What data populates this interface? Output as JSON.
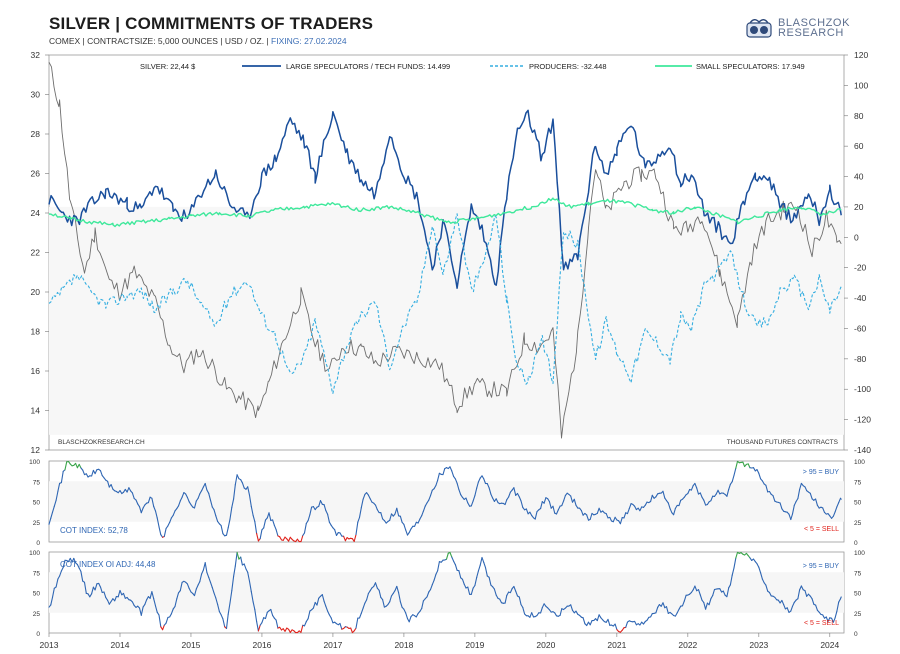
{
  "header": {
    "title": "SILVER | COMMITMENTS OF TRADERS",
    "subtitle": "COMEX | CONTRACTSIZE: 5,000 OUNCES | USD / OZ. |",
    "fixing": "FIXING: 27.02.2024"
  },
  "brand": {
    "line1": "BLASCHZOK",
    "line2": "RESEARCH",
    "logo": "chart-logo-icon"
  },
  "colors": {
    "price": "#6e6e6e",
    "large": "#1a4f9c",
    "producers": "#35aee0",
    "small": "#3ee89b",
    "cot": "#2f66b3",
    "buy": "#3aa54a",
    "sell": "#e0231c"
  },
  "chart_data": [
    {
      "id": "main",
      "type": "line",
      "title": "SILVER | COMMITMENTS OF TRADERS",
      "x_range": [
        2013.0,
        2024.2
      ],
      "x_ticks": [
        "2013",
        "2014",
        "2015",
        "2016",
        "2017",
        "2018",
        "2019",
        "2020",
        "2021",
        "2022",
        "2023",
        "2024"
      ],
      "left_axis": {
        "label": "USD / OZ.",
        "range": [
          12,
          32
        ],
        "ticks": [
          32,
          30,
          28,
          26,
          24,
          22,
          20,
          18,
          16,
          14,
          12
        ]
      },
      "right_axis": {
        "label": "THOUSAND FUTURES CONTRACTS",
        "range": [
          -140,
          120
        ],
        "ticks": [
          120,
          100,
          80,
          60,
          40,
          20,
          0,
          -20,
          -40,
          -60,
          -80,
          -100,
          -120,
          -140
        ]
      },
      "legend": [
        "SILVER: 22,44 $",
        "LARGE SPECULATORS / TECH FUNDS: 14.499",
        "PRODUCERS: -32.448",
        "SMALL SPECULATORS: 17.949"
      ],
      "source_note": "BLASCHZOKRESEARCH.CH",
      "units_note": "THOUSAND  FUTURES CONTRACTS",
      "series": [
        {
          "name": "Silver price",
          "axis": "left",
          "x": [
            2013.0,
            2013.15,
            2013.3,
            2013.5,
            2013.65,
            2013.85,
            2014.0,
            2014.2,
            2014.5,
            2014.7,
            2014.9,
            2015.1,
            2015.3,
            2015.5,
            2015.7,
            2015.95,
            2016.1,
            2016.3,
            2016.55,
            2016.75,
            2016.95,
            2017.15,
            2017.4,
            2017.6,
            2017.9,
            2018.2,
            2018.5,
            2018.75,
            2019.0,
            2019.2,
            2019.45,
            2019.7,
            2019.9,
            2020.1,
            2020.22,
            2020.45,
            2020.6,
            2020.7,
            2020.85,
            2021.1,
            2021.35,
            2021.55,
            2021.8,
            2022.0,
            2022.2,
            2022.45,
            2022.7,
            2022.9,
            2023.1,
            2023.35,
            2023.55,
            2023.75,
            2023.95,
            2024.1,
            2024.16
          ],
          "values": [
            31.5,
            29.5,
            24.5,
            21.0,
            23.0,
            20.5,
            20.0,
            21.0,
            19.5,
            17.3,
            16.2,
            17.0,
            16.3,
            15.1,
            14.6,
            13.9,
            15.4,
            17.5,
            19.8,
            17.4,
            16.0,
            17.3,
            17.1,
            16.4,
            17.0,
            16.7,
            16.3,
            14.3,
            15.3,
            15.1,
            14.9,
            17.6,
            17.2,
            18.0,
            12.7,
            17.6,
            23.5,
            26.4,
            24.0,
            25.5,
            26.0,
            26.0,
            23.2,
            23.2,
            24.0,
            21.0,
            18.5,
            21.8,
            23.5,
            24.2,
            24.3,
            22.0,
            23.8,
            22.4,
            22.44
          ]
        },
        {
          "name": "Large speculators / tech funds",
          "axis": "right",
          "last": 14.499,
          "x": [
            2013.0,
            2013.2,
            2013.4,
            2013.55,
            2013.8,
            2014.1,
            2014.3,
            2014.5,
            2014.75,
            2014.95,
            2015.15,
            2015.35,
            2015.55,
            2015.8,
            2016.0,
            2016.2,
            2016.4,
            2016.6,
            2016.75,
            2017.0,
            2017.2,
            2017.4,
            2017.6,
            2017.8,
            2018.0,
            2018.2,
            2018.4,
            2018.55,
            2018.75,
            2018.95,
            2019.1,
            2019.3,
            2019.45,
            2019.6,
            2019.75,
            2019.95,
            2020.1,
            2020.25,
            2020.45,
            2020.7,
            2020.85,
            2021.0,
            2021.2,
            2021.4,
            2021.55,
            2021.75,
            2021.9,
            2022.05,
            2022.25,
            2022.45,
            2022.6,
            2022.8,
            2022.95,
            2023.15,
            2023.3,
            2023.5,
            2023.7,
            2023.85,
            2024.0,
            2024.16
          ],
          "values": [
            25,
            15,
            10,
            20,
            30,
            22,
            18,
            35,
            18,
            12,
            30,
            42,
            22,
            12,
            40,
            52,
            78,
            62,
            40,
            82,
            55,
            38,
            28,
            70,
            42,
            25,
            -20,
            10,
            -30,
            20,
            5,
            -30,
            28,
            70,
            80,
            52,
            78,
            -22,
            -12,
            62,
            40,
            58,
            75,
            45,
            52,
            62,
            35,
            42,
            15,
            5,
            -5,
            25,
            42,
            38,
            20,
            12,
            30,
            12,
            32,
            14.5
          ]
        },
        {
          "name": "Producers",
          "axis": "right",
          "last": -32.448,
          "x": [
            2013.0,
            2013.2,
            2013.4,
            2013.55,
            2013.8,
            2014.1,
            2014.3,
            2014.5,
            2014.75,
            2014.95,
            2015.15,
            2015.35,
            2015.55,
            2015.8,
            2016.0,
            2016.2,
            2016.4,
            2016.6,
            2016.75,
            2017.0,
            2017.2,
            2017.4,
            2017.6,
            2017.8,
            2018.0,
            2018.2,
            2018.4,
            2018.55,
            2018.75,
            2018.95,
            2019.1,
            2019.3,
            2019.45,
            2019.6,
            2019.75,
            2019.95,
            2020.1,
            2020.25,
            2020.45,
            2020.7,
            2020.85,
            2021.0,
            2021.2,
            2021.4,
            2021.55,
            2021.75,
            2021.9,
            2022.05,
            2022.25,
            2022.45,
            2022.6,
            2022.8,
            2022.95,
            2023.15,
            2023.3,
            2023.5,
            2023.7,
            2023.85,
            2024.0,
            2024.16
          ],
          "values": [
            -45,
            -35,
            -25,
            -35,
            -45,
            -38,
            -35,
            -48,
            -35,
            -28,
            -45,
            -58,
            -38,
            -28,
            -52,
            -65,
            -92,
            -78,
            -55,
            -100,
            -70,
            -52,
            -42,
            -85,
            -58,
            -40,
            10,
            -25,
            15,
            -35,
            -20,
            15,
            -42,
            -85,
            -95,
            -68,
            -95,
            5,
            -5,
            -80,
            -55,
            -75,
            -92,
            -62,
            -68,
            -80,
            -52,
            -60,
            -30,
            -22,
            -10,
            -42,
            -58,
            -55,
            -35,
            -28,
            -45,
            -28,
            -48,
            -32.4
          ]
        },
        {
          "name": "Small speculators",
          "axis": "right",
          "last": 17.949,
          "x": [
            2013.0,
            2013.3,
            2013.6,
            2013.9,
            2014.3,
            2014.7,
            2015.0,
            2015.4,
            2015.8,
            2016.2,
            2016.6,
            2017.0,
            2017.4,
            2017.8,
            2018.2,
            2018.6,
            2019.0,
            2019.4,
            2019.8,
            2020.1,
            2020.3,
            2020.6,
            2020.9,
            2021.2,
            2021.5,
            2021.8,
            2022.1,
            2022.4,
            2022.7,
            2023.0,
            2023.3,
            2023.6,
            2023.9,
            2024.16
          ],
          "values": [
            16,
            12,
            10,
            8,
            10,
            12,
            14,
            16,
            14,
            18,
            20,
            22,
            18,
            20,
            16,
            10,
            12,
            16,
            20,
            26,
            20,
            22,
            24,
            22,
            18,
            16,
            20,
            15,
            10,
            14,
            18,
            20,
            15,
            17.9
          ]
        }
      ]
    },
    {
      "id": "cot-index",
      "type": "line",
      "label": "COT INDEX: 52,78",
      "y_range": [
        0,
        100
      ],
      "y_ticks": [
        100,
        75,
        50,
        25,
        0
      ],
      "thresholds": {
        "buy": "> 95 = BUY",
        "sell": "< 5 = SELL"
      },
      "x": [
        2013.0,
        2013.1,
        2013.25,
        2013.4,
        2013.55,
        2013.7,
        2013.85,
        2014.0,
        2014.15,
        2014.3,
        2014.45,
        2014.6,
        2014.75,
        2014.9,
        2015.05,
        2015.2,
        2015.35,
        2015.5,
        2015.65,
        2015.8,
        2015.95,
        2016.1,
        2016.25,
        2016.4,
        2016.55,
        2016.7,
        2016.85,
        2017.0,
        2017.15,
        2017.3,
        2017.45,
        2017.6,
        2017.75,
        2017.9,
        2018.05,
        2018.2,
        2018.35,
        2018.5,
        2018.65,
        2018.8,
        2018.95,
        2019.1,
        2019.25,
        2019.4,
        2019.55,
        2019.7,
        2019.85,
        2020.0,
        2020.15,
        2020.3,
        2020.45,
        2020.6,
        2020.75,
        2020.9,
        2021.05,
        2021.2,
        2021.35,
        2021.5,
        2021.65,
        2021.8,
        2021.95,
        2022.1,
        2022.25,
        2022.4,
        2022.55,
        2022.7,
        2022.85,
        2023.0,
        2023.15,
        2023.3,
        2023.45,
        2023.6,
        2023.75,
        2023.9,
        2024.05,
        2024.16
      ],
      "values": [
        25,
        55,
        98,
        95,
        80,
        90,
        70,
        60,
        65,
        38,
        55,
        3,
        35,
        60,
        42,
        75,
        30,
        5,
        80,
        65,
        2,
        35,
        3,
        4,
        2,
        40,
        50,
        15,
        5,
        3,
        60,
        45,
        25,
        40,
        10,
        25,
        55,
        82,
        95,
        60,
        45,
        85,
        55,
        45,
        65,
        40,
        30,
        55,
        35,
        60,
        45,
        28,
        40,
        30,
        25,
        45,
        40,
        55,
        60,
        35,
        55,
        70,
        45,
        62,
        55,
        98,
        96,
        85,
        60,
        45,
        30,
        70,
        55,
        40,
        30,
        52.8
      ]
    },
    {
      "id": "cot-index-oi-adj",
      "type": "line",
      "label": "COT INDEX OI ADJ: 44,48",
      "y_range": [
        0,
        100
      ],
      "y_ticks": [
        100,
        75,
        50,
        25,
        0
      ],
      "thresholds": {
        "buy": "> 95 = BUY",
        "sell": "< 5 = SELL"
      },
      "x": [
        2013.0,
        2013.1,
        2013.25,
        2013.4,
        2013.55,
        2013.7,
        2013.85,
        2014.0,
        2014.15,
        2014.3,
        2014.45,
        2014.6,
        2014.75,
        2014.9,
        2015.05,
        2015.2,
        2015.35,
        2015.5,
        2015.65,
        2015.8,
        2015.95,
        2016.1,
        2016.25,
        2016.4,
        2016.55,
        2016.7,
        2016.85,
        2017.0,
        2017.15,
        2017.3,
        2017.45,
        2017.6,
        2017.75,
        2017.9,
        2018.05,
        2018.2,
        2018.35,
        2018.5,
        2018.65,
        2018.8,
        2018.95,
        2019.1,
        2019.25,
        2019.4,
        2019.55,
        2019.7,
        2019.85,
        2020.0,
        2020.15,
        2020.3,
        2020.45,
        2020.6,
        2020.75,
        2020.9,
        2021.05,
        2021.2,
        2021.35,
        2021.5,
        2021.65,
        2021.8,
        2021.95,
        2022.1,
        2022.25,
        2022.4,
        2022.55,
        2022.7,
        2022.85,
        2023.0,
        2023.15,
        2023.3,
        2023.45,
        2023.6,
        2023.75,
        2023.9,
        2024.05,
        2024.16
      ],
      "values": [
        30,
        60,
        92,
        88,
        45,
        62,
        35,
        50,
        40,
        25,
        50,
        3,
        30,
        65,
        45,
        85,
        40,
        5,
        98,
        75,
        3,
        30,
        4,
        3,
        3,
        30,
        45,
        15,
        5,
        3,
        40,
        60,
        30,
        55,
        15,
        25,
        50,
        85,
        98,
        70,
        45,
        90,
        55,
        35,
        60,
        25,
        20,
        35,
        20,
        35,
        25,
        10,
        20,
        12,
        3,
        15,
        10,
        25,
        35,
        20,
        40,
        60,
        30,
        55,
        45,
        98,
        97,
        80,
        50,
        40,
        25,
        55,
        40,
        20,
        15,
        44.5
      ]
    }
  ]
}
